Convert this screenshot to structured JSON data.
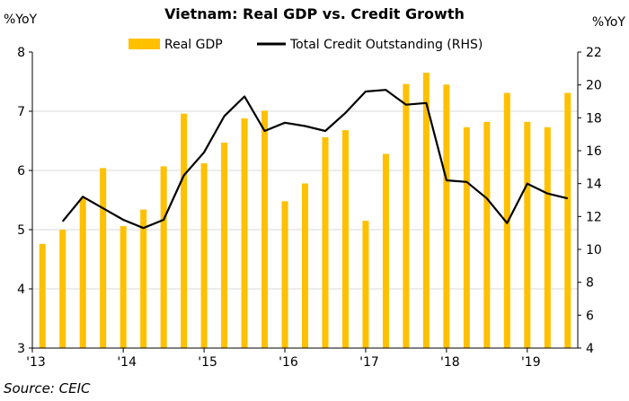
{
  "chart_data": {
    "type": "bar+line",
    "title": "Vietnam: Real GDP vs. Credit Growth",
    "ylabel_left": "%YoY",
    "ylabel_right": "%YoY",
    "ylim_left": [
      3,
      8
    ],
    "yticks_left": [
      "3",
      "4",
      "5",
      "6",
      "7",
      "8"
    ],
    "ylim_right": [
      4,
      22
    ],
    "yticks_right": [
      "4",
      "6",
      "8",
      "10",
      "12",
      "14",
      "16",
      "18",
      "20",
      "22"
    ],
    "x_tick_labels": [
      "'13",
      "'14",
      "'15",
      "'16",
      "'17",
      "'18",
      "'19"
    ],
    "legend": {
      "bar_label": "Real GDP",
      "line_label": "Total Credit Outstanding (RHS)",
      "placement": "top"
    },
    "categories": [
      "2013Q1",
      "2013Q2",
      "2013Q3",
      "2013Q4",
      "2014Q1",
      "2014Q2",
      "2014Q3",
      "2014Q4",
      "2015Q1",
      "2015Q2",
      "2015Q3",
      "2015Q4",
      "2016Q1",
      "2016Q2",
      "2016Q3",
      "2016Q4",
      "2017Q1",
      "2017Q2",
      "2017Q3",
      "2017Q4",
      "2018Q1",
      "2018Q2",
      "2018Q3",
      "2018Q4",
      "2019Q1",
      "2019Q2",
      "2019Q3"
    ],
    "series": [
      {
        "name": "Real GDP",
        "axis": "left",
        "type": "bar",
        "values": [
          4.76,
          5.0,
          5.54,
          6.04,
          5.06,
          5.34,
          6.07,
          6.96,
          6.12,
          6.47,
          6.88,
          7.01,
          5.48,
          5.78,
          6.56,
          6.68,
          5.15,
          6.28,
          7.46,
          7.65,
          7.45,
          6.73,
          6.82,
          7.31,
          6.82,
          6.73,
          7.31
        ]
      },
      {
        "name": "Total Credit Outstanding (RHS)",
        "axis": "right",
        "type": "line",
        "values": [
          null,
          11.7,
          13.2,
          12.5,
          11.8,
          11.3,
          11.8,
          14.5,
          15.9,
          18.1,
          19.3,
          17.2,
          17.7,
          17.5,
          17.2,
          18.3,
          19.6,
          19.7,
          18.8,
          18.9,
          14.2,
          14.1,
          13.1,
          11.6,
          14.0,
          13.4,
          13.1
        ]
      }
    ],
    "colors": {
      "bar": "#FFC000",
      "line": "#000000"
    },
    "source": "Source: CEIC"
  }
}
